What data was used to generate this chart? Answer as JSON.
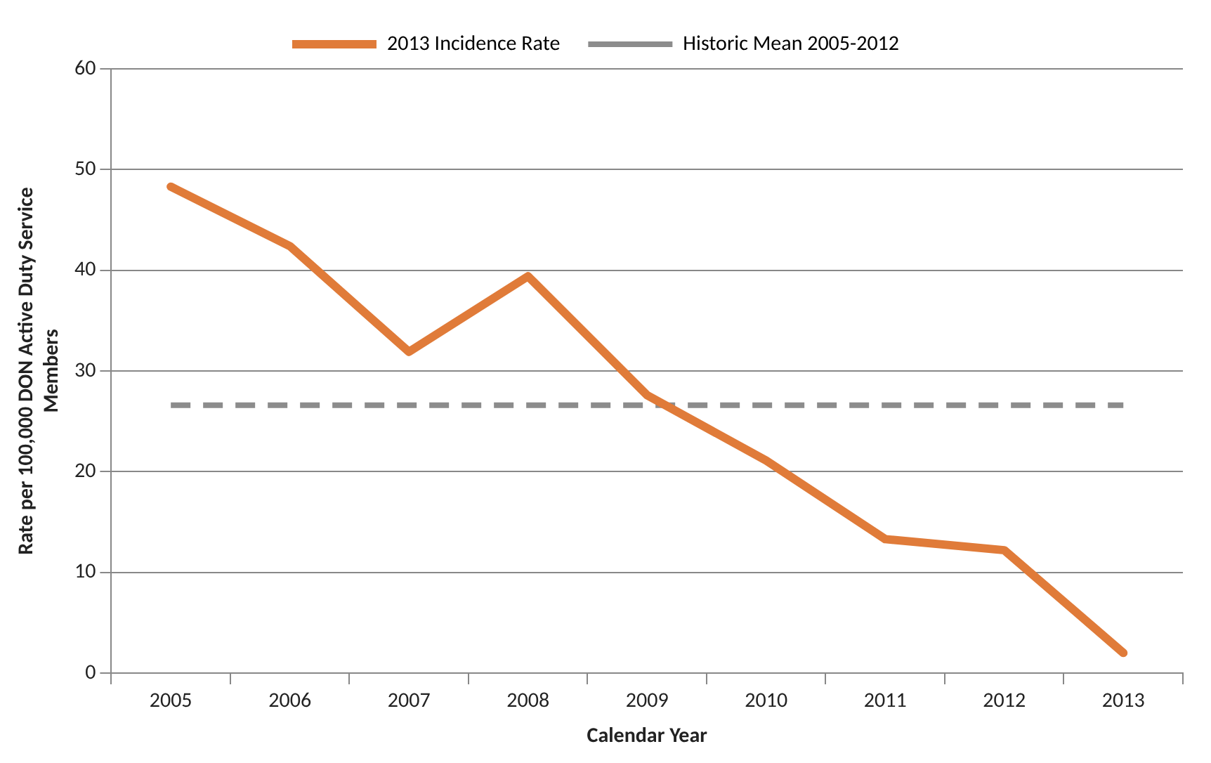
{
  "chart_data": {
    "type": "line",
    "xlabel": "Calendar Year",
    "ylabel": "Rate per 100,000 DON Active Duty Service Members",
    "categories": [
      "2005",
      "2006",
      "2007",
      "2008",
      "2009",
      "2010",
      "2011",
      "2012",
      "2013"
    ],
    "series": [
      {
        "name": "2013 Incidence Rate",
        "color": "#e07b39",
        "line_style": "solid",
        "values": [
          48.3,
          42.4,
          31.9,
          39.4,
          27.6,
          21.1,
          13.3,
          12.2,
          2.0
        ]
      },
      {
        "name": "Historic Mean 2005-2012",
        "color": "#8c8c8c",
        "line_style": "dashed",
        "values": [
          26.6,
          26.6,
          26.6,
          26.6,
          26.6,
          26.6,
          26.6,
          26.6,
          26.6
        ]
      }
    ],
    "ylim": [
      0,
      60
    ],
    "yticks": [
      0,
      10,
      20,
      30,
      40,
      50,
      60
    ],
    "grid": "y",
    "legend": "top",
    "marker": "none"
  }
}
